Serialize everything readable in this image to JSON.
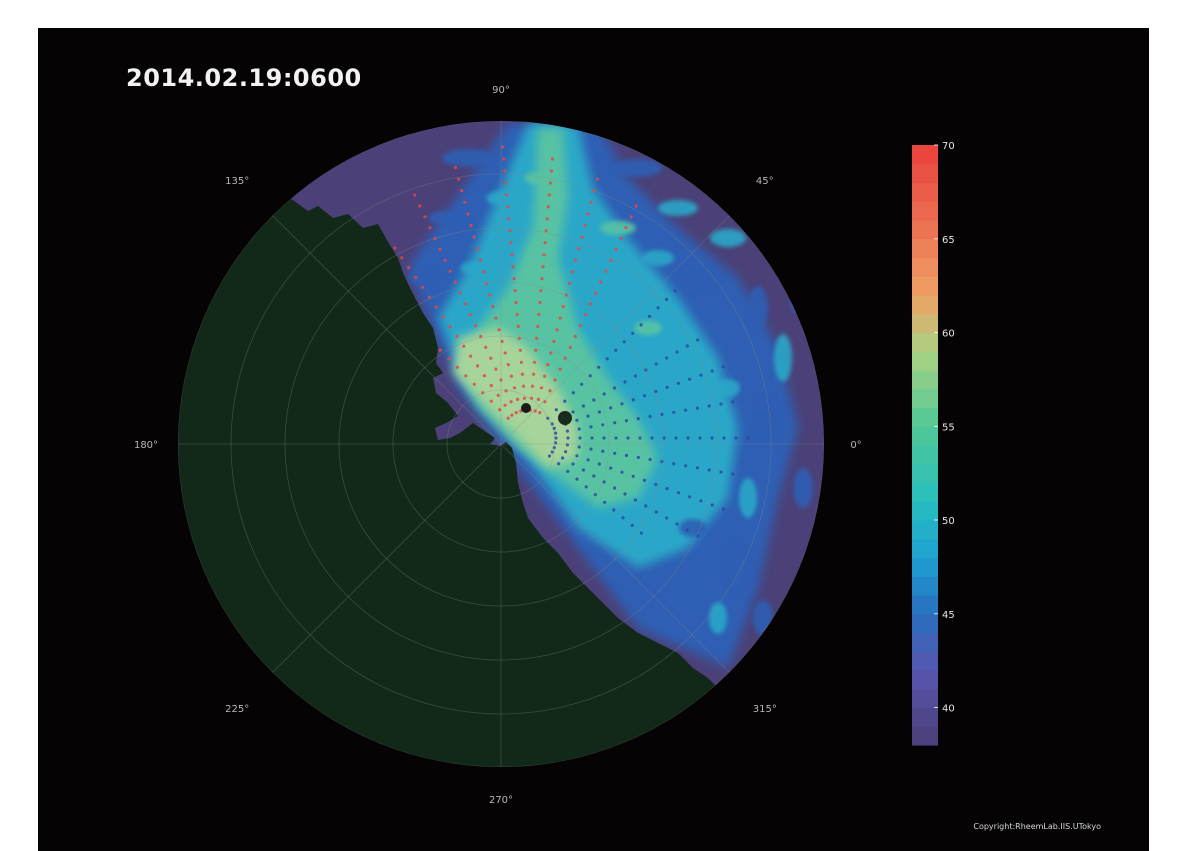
{
  "timestamp": "2014.02.19:0600",
  "copyright": "Copyright:RheemLab.IIS.UTokyo",
  "chart_data": {
    "type": "polar-heatmap",
    "title": "2014.02.19:0600",
    "angle_ticks": [
      {
        "deg": 0,
        "label": "0°"
      },
      {
        "deg": 45,
        "label": "45°"
      },
      {
        "deg": 90,
        "label": "90°"
      },
      {
        "deg": 135,
        "label": "135°"
      },
      {
        "deg": 180,
        "label": "180°"
      },
      {
        "deg": 225,
        "label": "225°"
      },
      {
        "deg": 270,
        "label": "270°"
      },
      {
        "deg": 315,
        "label": "315°"
      }
    ],
    "grid": true,
    "colorbar": {
      "min": 38,
      "max": 70,
      "step": 1,
      "ticks": [
        40,
        45,
        50,
        55,
        60,
        65,
        70
      ],
      "placement": "right"
    },
    "colors": {
      "background": "#050303",
      "land": "#12291a",
      "low": "#4a3e74",
      "high": "#e8403c"
    }
  }
}
